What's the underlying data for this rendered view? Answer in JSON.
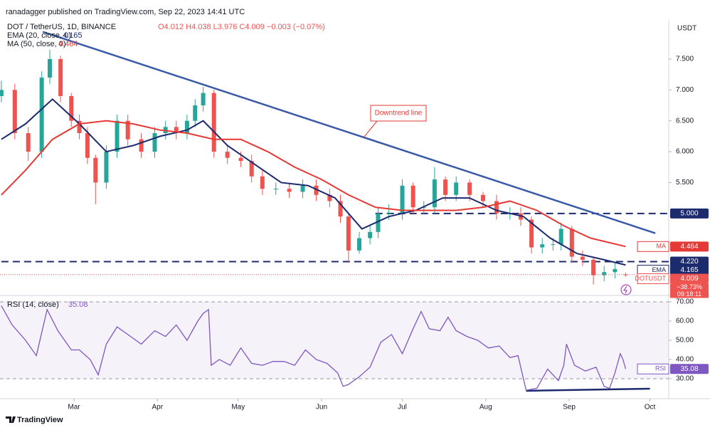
{
  "chart_data": [
    {
      "type": "candlestick",
      "publisher": "ranadagger published on TradingView.com, Sep 22, 2023 14:41 UTC",
      "title": "DOT / TetherUS, 1D, BINANCE",
      "ohlc_label": "O4.012 H4.038 L3.976 C4.009 −0.003 (−0.07%)",
      "currency": "USDT",
      "up_color": "#26a69a",
      "down_color": "#ef5350",
      "x": [
        1,
        6,
        11,
        16,
        19,
        23,
        27,
        30,
        33,
        36,
        40,
        44,
        48,
        53,
        58,
        62,
        66,
        70,
        73,
        76,
        80,
        85,
        90,
        94,
        98,
        103,
        108,
        113,
        118,
        123,
        127,
        130,
        134,
        138,
        141,
        145,
        150,
        154,
        158,
        162,
        166,
        170,
        175,
        180,
        185,
        190,
        194,
        198,
        202,
        206,
        209,
        213,
        217,
        221,
        225,
        229,
        233
      ],
      "open": [
        6.9,
        7.0,
        6.3,
        6.0,
        7.2,
        7.5,
        6.9,
        6.5,
        6.3,
        5.9,
        5.5,
        6.0,
        6.5,
        6.2,
        6.0,
        6.3,
        6.4,
        6.3,
        6.5,
        6.75,
        6.95,
        6.0,
        5.9,
        5.85,
        5.6,
        5.4,
        5.4,
        5.35,
        5.45,
        5.3,
        5.2,
        4.95,
        4.4,
        4.6,
        4.7,
        5.0,
        5.0,
        5.45,
        5.1,
        5.1,
        5.55,
        5.3,
        5.5,
        5.3,
        5.2,
        5.0,
        5.0,
        4.9,
        4.45,
        4.5,
        4.5,
        4.75,
        4.3,
        4.25,
        4.0,
        4.05,
        4.012
      ],
      "high": [
        7.15,
        7.1,
        6.4,
        7.3,
        7.65,
        7.55,
        6.95,
        6.6,
        6.4,
        5.95,
        6.1,
        6.6,
        6.6,
        6.3,
        6.4,
        6.5,
        6.5,
        6.6,
        6.85,
        7.05,
        7.0,
        6.1,
        6.0,
        5.95,
        5.7,
        5.5,
        5.5,
        5.55,
        5.55,
        5.4,
        5.3,
        5.0,
        4.7,
        4.8,
        5.1,
        5.15,
        5.55,
        5.5,
        5.2,
        5.75,
        5.6,
        5.6,
        5.55,
        5.35,
        5.3,
        5.1,
        5.1,
        4.95,
        4.6,
        4.6,
        4.85,
        4.8,
        4.4,
        4.3,
        4.15,
        4.2,
        4.038
      ],
      "low": [
        6.8,
        6.2,
        5.85,
        5.9,
        7.1,
        6.8,
        6.4,
        6.2,
        5.8,
        5.15,
        5.4,
        5.9,
        6.1,
        5.9,
        5.9,
        6.2,
        6.2,
        6.2,
        6.4,
        6.65,
        5.9,
        5.8,
        5.75,
        5.5,
        5.3,
        5.3,
        5.25,
        5.25,
        5.2,
        5.1,
        4.85,
        4.2,
        4.35,
        4.5,
        4.6,
        4.9,
        4.9,
        5.0,
        5.0,
        5.0,
        5.2,
        5.2,
        5.2,
        5.1,
        4.9,
        4.9,
        4.8,
        4.35,
        4.35,
        4.4,
        4.4,
        4.2,
        4.15,
        3.85,
        3.9,
        3.95,
        3.976
      ],
      "close": [
        7.0,
        6.3,
        6.0,
        7.2,
        7.5,
        6.9,
        6.5,
        6.3,
        5.9,
        5.5,
        6.0,
        6.5,
        6.2,
        6.0,
        6.3,
        6.4,
        6.3,
        6.5,
        6.75,
        6.95,
        6.0,
        5.9,
        5.85,
        5.6,
        5.4,
        5.4,
        5.35,
        5.45,
        5.3,
        5.2,
        4.95,
        4.4,
        4.6,
        4.7,
        5.0,
        5.0,
        5.45,
        5.1,
        5.1,
        5.55,
        5.3,
        5.5,
        5.3,
        5.2,
        5.0,
        5.0,
        4.9,
        4.45,
        4.5,
        4.5,
        4.75,
        4.3,
        4.25,
        4.0,
        4.05,
        4.1,
        4.009
      ],
      "series": [
        {
          "name": "EMA (20, close, 0)",
          "short_name": "EMA",
          "color": "#1c2a6e",
          "last_value": 4.165,
          "x": [
            1,
            10,
            20,
            30,
            40,
            50,
            60,
            70,
            76,
            85,
            95,
            105,
            115,
            125,
            135,
            145,
            155,
            165,
            175,
            185,
            195,
            205,
            215,
            225,
            233
          ],
          "values": [
            6.2,
            6.45,
            6.85,
            6.45,
            6.0,
            6.1,
            6.25,
            6.35,
            6.5,
            6.1,
            5.8,
            5.5,
            5.45,
            5.25,
            4.75,
            4.95,
            5.05,
            5.25,
            5.25,
            5.05,
            4.95,
            4.6,
            4.35,
            4.25,
            4.165
          ]
        },
        {
          "name": "MA (50, close, 0)",
          "short_name": "MA",
          "color": "#e53935",
          "last_value": 4.464,
          "x": [
            1,
            10,
            20,
            30,
            40,
            50,
            60,
            70,
            80,
            90,
            100,
            110,
            120,
            130,
            140,
            150,
            160,
            170,
            180,
            190,
            200,
            210,
            220,
            233
          ],
          "values": [
            5.3,
            5.7,
            6.2,
            6.45,
            6.5,
            6.45,
            6.35,
            6.3,
            6.2,
            6.2,
            6.0,
            5.75,
            5.55,
            5.3,
            5.1,
            5.05,
            5.05,
            5.05,
            5.1,
            5.2,
            5.05,
            4.8,
            4.6,
            4.464
          ]
        }
      ],
      "levels": [
        {
          "value": 5,
          "label": "5.000",
          "color": "#1c2a6e",
          "from": 140
        },
        {
          "value": 4.22,
          "label": "4.220",
          "color": "#1c2a6e",
          "from": 1
        }
      ],
      "last_price": {
        "name": "DOTUSDT",
        "value": 4.009,
        "change": "−38.73%",
        "countdown": "09:18:11",
        "color": "#ef5350"
      },
      "trendline": {
        "label": "Downtrend line",
        "color": "#3a5aa8",
        "x": [
          16.4,
          244
        ],
        "y": [
          7.94,
          4.68
        ]
      },
      "xlim": [
        0.5,
        249
      ],
      "ylim": [
        3.73,
        8.11
      ],
      "xticks": [
        {
          "value": 28,
          "label": "Mar"
        },
        {
          "value": 59,
          "label": "Apr"
        },
        {
          "value": 89,
          "label": "May"
        },
        {
          "value": 120,
          "label": "Jun"
        },
        {
          "value": 150,
          "label": "Jul"
        },
        {
          "value": 181,
          "label": "Aug"
        },
        {
          "value": 212,
          "label": "Sep"
        },
        {
          "value": 242,
          "label": "Oct"
        }
      ],
      "yticks": [
        {
          "value": 5.5,
          "label": "5.500"
        },
        {
          "value": 6,
          "label": "6.000"
        },
        {
          "value": 6.5,
          "label": "6.500"
        },
        {
          "value": 7,
          "label": "7.000"
        },
        {
          "value": 7.5,
          "label": "7.500"
        }
      ]
    },
    {
      "type": "line",
      "title": "RSI (14, close)",
      "last_value": 35.08,
      "series": [
        {
          "name": "RSI",
          "color": "#7e57c2",
          "x": [
            1,
            5,
            10,
            14,
            18,
            22,
            27,
            30,
            34,
            37,
            40,
            44,
            48,
            53,
            58,
            62,
            66,
            70,
            74,
            76,
            78,
            79,
            82,
            86,
            90,
            94,
            98,
            102,
            106,
            110,
            114,
            118,
            122,
            126,
            128,
            130,
            134,
            138,
            142,
            146,
            150,
            154,
            157,
            160,
            164,
            167,
            170,
            174,
            178,
            182,
            186,
            190,
            193,
            196,
            200,
            204,
            208,
            210,
            211,
            214,
            218,
            222,
            225,
            227,
            229,
            231,
            232,
            233
          ],
          "values": [
            68,
            58,
            50,
            42,
            66,
            55,
            45,
            45,
            40,
            32,
            48,
            57,
            53,
            48,
            55,
            52,
            58,
            50,
            60,
            64,
            66,
            37,
            40,
            37,
            46,
            38,
            37,
            39,
            39,
            37,
            45,
            40,
            38,
            33,
            26,
            27,
            31,
            36,
            49,
            53,
            43,
            56,
            65,
            56,
            55,
            62,
            55,
            52,
            50,
            46,
            47,
            41,
            42,
            24,
            25,
            35,
            29,
            37,
            48,
            37,
            34,
            36,
            26,
            25,
            33,
            43,
            40,
            35.08
          ]
        }
      ],
      "band": [
        30,
        70
      ],
      "band_color": "#7e57c2",
      "trendline": {
        "color": "#1c2a6e",
        "x": [
          196,
          242
        ],
        "y": [
          23.7,
          24.8
        ]
      },
      "xlim": [
        0.5,
        249
      ],
      "ylim": [
        19.6,
        71.5
      ],
      "yticks": [
        {
          "value": 30,
          "label": "30.00"
        },
        {
          "value": 40,
          "label": "40.00"
        },
        {
          "value": 50,
          "label": "50.00"
        },
        {
          "value": 60,
          "label": "60.00"
        },
        {
          "value": 70,
          "label": "70.00"
        }
      ]
    }
  ],
  "footer": {
    "brand": "TradingView"
  }
}
